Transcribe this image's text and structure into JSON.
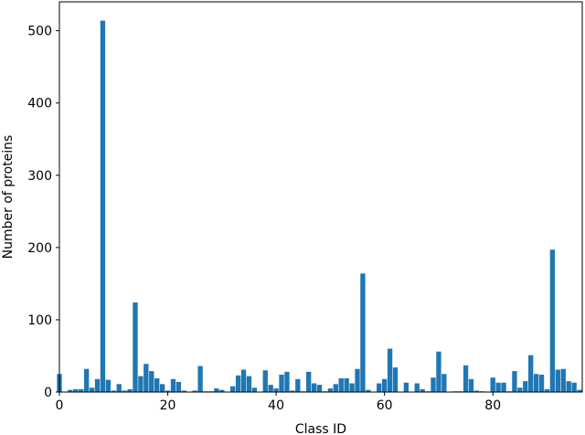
{
  "chart_data": {
    "type": "bar",
    "title": "",
    "xlabel": "Class ID",
    "ylabel": "Number of proteins",
    "xlim": [
      0,
      96.5
    ],
    "ylim": [
      0,
      540
    ],
    "xticks": [
      0,
      20,
      40,
      60,
      80
    ],
    "yticks": [
      0,
      100,
      200,
      300,
      400,
      500
    ],
    "grid": false,
    "bar_color": "#1f77b4",
    "bar_width": 0.9,
    "x": [
      0,
      1,
      2,
      3,
      4,
      5,
      6,
      7,
      8,
      9,
      10,
      11,
      12,
      13,
      14,
      15,
      16,
      17,
      18,
      19,
      20,
      21,
      22,
      23,
      24,
      25,
      26,
      27,
      28,
      29,
      30,
      31,
      32,
      33,
      34,
      35,
      36,
      37,
      38,
      39,
      40,
      41,
      42,
      43,
      44,
      45,
      46,
      47,
      48,
      49,
      50,
      51,
      52,
      53,
      54,
      55,
      56,
      57,
      58,
      59,
      60,
      61,
      62,
      63,
      64,
      65,
      66,
      67,
      68,
      69,
      70,
      71,
      72,
      73,
      74,
      75,
      76,
      77,
      78,
      79,
      80,
      81,
      82,
      83,
      84,
      85,
      86,
      87,
      88,
      89,
      90,
      91,
      92,
      93,
      94,
      95,
      96
    ],
    "values": [
      25,
      0,
      3,
      4,
      4,
      32,
      6,
      18,
      514,
      17,
      2,
      11,
      2,
      4,
      124,
      22,
      39,
      29,
      19,
      11,
      2,
      18,
      14,
      2,
      0,
      2,
      36,
      1,
      1,
      5,
      3,
      0,
      8,
      23,
      31,
      22,
      6,
      0,
      30,
      10,
      5,
      24,
      28,
      2,
      18,
      1,
      28,
      12,
      10,
      1,
      5,
      11,
      19,
      19,
      12,
      32,
      164,
      3,
      0,
      12,
      18,
      60,
      34,
      0,
      13,
      0,
      12,
      4,
      1,
      20,
      56,
      25,
      0,
      1,
      1,
      37,
      18,
      2,
      1,
      0,
      20,
      13,
      13,
      1,
      29,
      6,
      15,
      51,
      25,
      24,
      4,
      197,
      31,
      32,
      15,
      13,
      3
    ]
  }
}
